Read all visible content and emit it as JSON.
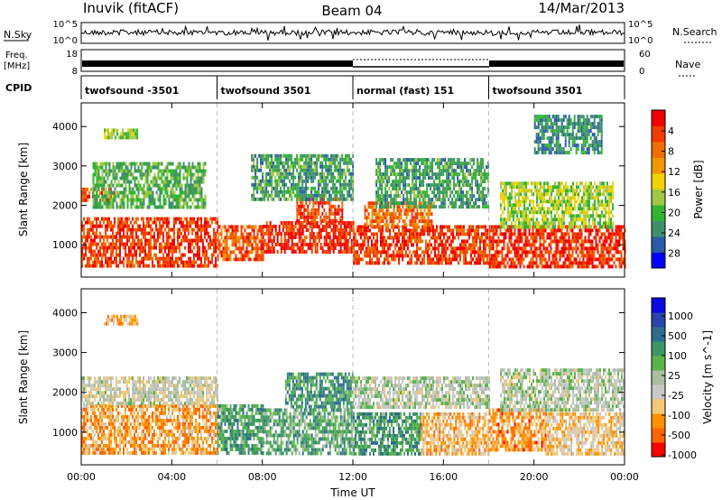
{
  "header": {
    "station": "Inuvik (fitACF)",
    "beam": "Beam 04",
    "date": "14/Mar/2013"
  },
  "side_labels": {
    "nsky": "N.Sky",
    "freq_line1": "Freq.",
    "freq_line2": "[MHz]",
    "cpid": "CPID",
    "nsearch": "N.Search",
    "nave": "Nave"
  },
  "noise_ticks": {
    "top_left": "10^5",
    "bottom_left": "10^0",
    "top_right": "10^5",
    "bottom_right": "10^0"
  },
  "freq_ticks": {
    "top_left": "18",
    "bottom_left": "8",
    "top_right": "60",
    "bottom_right": "0"
  },
  "cpid_segments": [
    {
      "label": "twofsound -3501",
      "start_hour": 0,
      "end_hour": 6
    },
    {
      "label": "twofsound 3501",
      "start_hour": 6,
      "end_hour": 12
    },
    {
      "label": "normal (fast) 151",
      "start_hour": 12,
      "end_hour": 18
    },
    {
      "label": "twofsound 3501",
      "start_hour": 18,
      "end_hour": 24
    }
  ],
  "colors": {
    "power": [
      "#0000ff",
      "#2a5aa8",
      "#3f8f6e",
      "#33b433",
      "#a0c846",
      "#f0d200",
      "#f09600",
      "#f06e00",
      "#f03c00",
      "#f00000"
    ],
    "velocity": [
      "#ff0000",
      "#ff6400",
      "#ff9100",
      "#f0c878",
      "#c8c8c8",
      "#aabea0",
      "#5ab44b",
      "#3c9664",
      "#2d6e8c",
      "#2846aa",
      "#0a0adc"
    ]
  },
  "chart_data": [
    {
      "type": "heatmap",
      "name": "power",
      "xlabel": "",
      "ylabel": "Slant Range [km]",
      "xlim": [
        0,
        24
      ],
      "ylim": [
        180,
        4600
      ],
      "x_ticks": [
        0,
        4,
        8,
        12,
        16,
        20,
        24
      ],
      "y_ticks": [
        1000,
        2000,
        3000,
        4000
      ],
      "colorbar_label": "Power [dB]",
      "colorbar_range": [
        0,
        30
      ],
      "colorbar_ticks": [
        "4",
        "8",
        "12",
        "16",
        "20",
        "24",
        "28"
      ],
      "regions": [
        {
          "t0": 0.0,
          "t1": 6.0,
          "r0": 500,
          "r1": 1700,
          "level": 0.85
        },
        {
          "t0": 0.0,
          "t1": 1.5,
          "r0": 2150,
          "r1": 2450,
          "level": 0.8
        },
        {
          "t0": 0.5,
          "t1": 5.5,
          "r0": 2000,
          "r1": 3100,
          "level": 0.35
        },
        {
          "t0": 1.0,
          "t1": 2.5,
          "r0": 3700,
          "r1": 3950,
          "level": 0.45
        },
        {
          "t0": 6.0,
          "t1": 8.0,
          "r0": 600,
          "r1": 1500,
          "level": 0.8
        },
        {
          "t0": 8.0,
          "t1": 12.0,
          "r0": 800,
          "r1": 1600,
          "level": 0.9
        },
        {
          "t0": 9.5,
          "t1": 11.5,
          "r0": 1600,
          "r1": 2200,
          "level": 0.85
        },
        {
          "t0": 7.5,
          "t1": 12.0,
          "r0": 2200,
          "r1": 3300,
          "level": 0.3
        },
        {
          "t0": 12.0,
          "t1": 18.0,
          "r0": 500,
          "r1": 1500,
          "level": 0.85
        },
        {
          "t0": 12.5,
          "t1": 15.5,
          "r0": 1500,
          "r1": 2100,
          "level": 0.75
        },
        {
          "t0": 13.0,
          "t1": 18.0,
          "r0": 2000,
          "r1": 3200,
          "level": 0.3
        },
        {
          "t0": 18.0,
          "t1": 24.0,
          "r0": 450,
          "r1": 1500,
          "level": 0.88
        },
        {
          "t0": 18.5,
          "t1": 23.5,
          "r0": 1500,
          "r1": 2600,
          "level": 0.45
        },
        {
          "t0": 20.0,
          "t1": 23.0,
          "r0": 3300,
          "r1": 4300,
          "level": 0.25
        }
      ]
    },
    {
      "type": "heatmap",
      "name": "velocity",
      "xlabel": "Time UT",
      "ylabel": "Slant Range [km]",
      "xlim": [
        0,
        24
      ],
      "ylim": [
        180,
        4600
      ],
      "x_ticks": [
        0,
        4,
        8,
        12,
        16,
        20,
        24
      ],
      "x_tick_labels": [
        "00:00",
        "04:00",
        "08:00",
        "12:00",
        "16:00",
        "20:00",
        "00:00"
      ],
      "y_ticks": [
        1000,
        2000,
        3000,
        4000
      ],
      "colorbar_label": "Velocity [m s^-1]",
      "colorbar_range": [
        -1000,
        1000
      ],
      "colorbar_ticks": [
        "1000",
        "500",
        "100",
        "25",
        "-25",
        "-100",
        "-500",
        "-1000"
      ],
      "regions": [
        {
          "t0": 0.0,
          "t1": 6.0,
          "r0": 500,
          "r1": 1700,
          "level": 0.25
        },
        {
          "t0": 0.0,
          "t1": 6.0,
          "r0": 1700,
          "r1": 2400,
          "level": 0.42
        },
        {
          "t0": 1.0,
          "t1": 2.5,
          "r0": 3700,
          "r1": 3950,
          "level": 0.3
        },
        {
          "t0": 6.0,
          "t1": 8.0,
          "r0": 500,
          "r1": 1700,
          "level": 0.65
        },
        {
          "t0": 8.0,
          "t1": 12.0,
          "r0": 500,
          "r1": 1600,
          "level": 0.62
        },
        {
          "t0": 9.0,
          "t1": 12.0,
          "r0": 1600,
          "r1": 2500,
          "level": 0.68
        },
        {
          "t0": 12.0,
          "t1": 15.0,
          "r0": 500,
          "r1": 1500,
          "level": 0.66
        },
        {
          "t0": 15.0,
          "t1": 18.0,
          "r0": 500,
          "r1": 1500,
          "level": 0.28
        },
        {
          "t0": 12.0,
          "t1": 18.0,
          "r0": 1600,
          "r1": 2400,
          "level": 0.47
        },
        {
          "t0": 18.0,
          "t1": 20.5,
          "r0": 600,
          "r1": 1600,
          "level": 0.22
        },
        {
          "t0": 20.5,
          "t1": 24.0,
          "r0": 500,
          "r1": 1500,
          "level": 0.32
        },
        {
          "t0": 18.5,
          "t1": 24.0,
          "r0": 1600,
          "r1": 2600,
          "level": 0.47
        }
      ]
    }
  ]
}
